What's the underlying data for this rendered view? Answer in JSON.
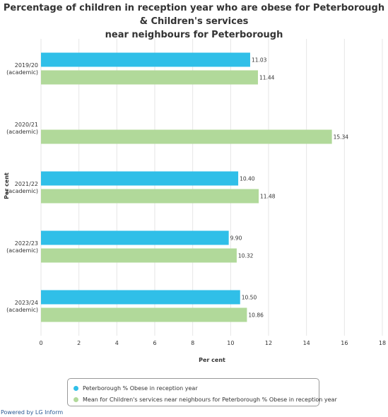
{
  "title_line1": "Percentage of children in reception year who are obese for Peterborough & Children's services",
  "title_line2": "near neighbours for Peterborough",
  "credit": "Powered by LG Inform",
  "colors": {
    "series1": "#30bfe8",
    "series2": "#b1d99a",
    "grid": "#e6e6e6",
    "text": "#333333"
  },
  "chart_data": {
    "type": "bar",
    "orientation": "horizontal",
    "categories": [
      "2019/20\n(academic)",
      "2020/21\n(academic)",
      "2021/22\n(academic)",
      "2022/23\n(academic)",
      "2023/24\n(academic)"
    ],
    "series": [
      {
        "name": "Peterborough % Obese in reception year",
        "values": [
          11.03,
          null,
          10.4,
          9.9,
          10.5
        ],
        "labels": [
          "11.03",
          null,
          "10.40",
          "9.90",
          "10.50"
        ]
      },
      {
        "name": "Mean for Children's services near neighbours for Peterborough % Obese in reception year",
        "values": [
          11.44,
          15.34,
          11.48,
          10.32,
          10.86
        ],
        "labels": [
          "11.44",
          "15.34",
          "11.48",
          "10.32",
          "10.86"
        ]
      }
    ],
    "xlabel": "Per cent",
    "ylabel": "Per cent",
    "xlim": [
      0,
      18
    ],
    "xticks": [
      0,
      2,
      4,
      6,
      8,
      10,
      12,
      14,
      16,
      18
    ],
    "grid": true,
    "legend": "bottom"
  }
}
